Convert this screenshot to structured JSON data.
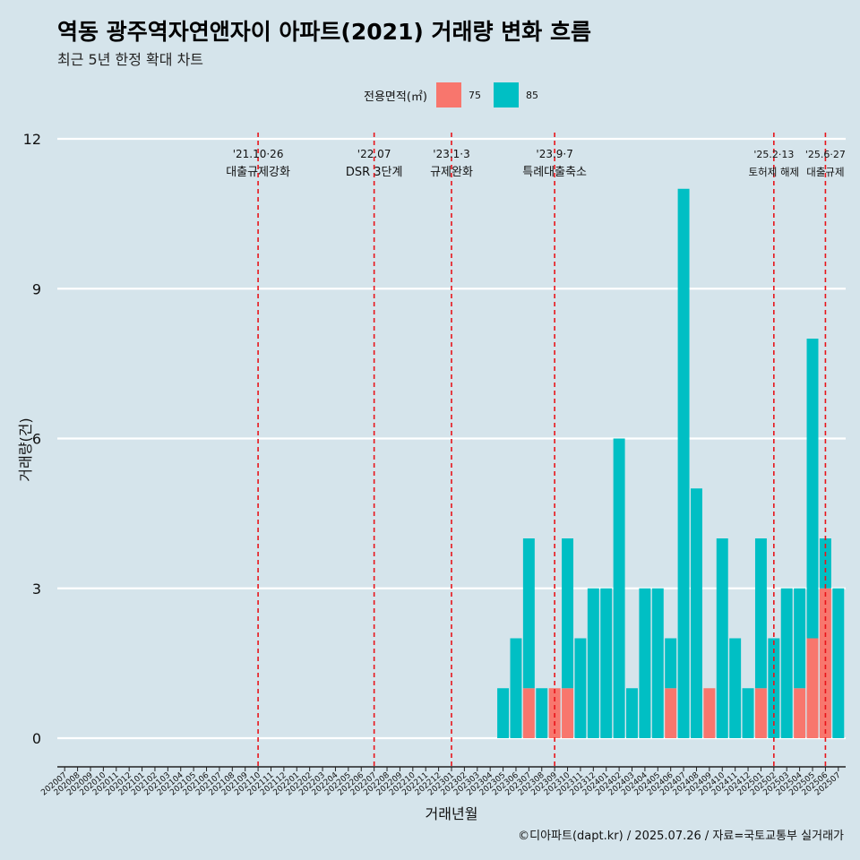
{
  "title": "역동 광주역자연앤자이 아파트(2021) 거래량 변화 흐름",
  "subtitle": "최근 5년 한정 확대 차트",
  "caption": "©디아파트(dapt.kr) / 2025.07.26 / 자료=국토교통부 실거래가",
  "colors": {
    "background": "#d5e4eb",
    "s75": "#f8766d",
    "s85": "#00bfc4",
    "event_line": "#e8141a",
    "grid": "#ffffff"
  },
  "chart_data": {
    "type": "bar",
    "stacked": true,
    "xlabel": "거래년월",
    "ylabel": "거래량(건)",
    "ylim": [
      0,
      12
    ],
    "yticks": [
      0,
      3,
      6,
      9,
      12
    ],
    "legend": {
      "title": "전용면적(㎡)",
      "position": "top"
    },
    "categories": [
      "202007",
      "202008",
      "202009",
      "202010",
      "202011",
      "202012",
      "202101",
      "202102",
      "202103",
      "202104",
      "202105",
      "202106",
      "202107",
      "202108",
      "202109",
      "202110",
      "202111",
      "202112",
      "202201",
      "202202",
      "202203",
      "202204",
      "202205",
      "202206",
      "202207",
      "202208",
      "202209",
      "202210",
      "202211",
      "202212",
      "202301",
      "202302",
      "202303",
      "202304",
      "202305",
      "202306",
      "202307",
      "202308",
      "202309",
      "202310",
      "202311",
      "202312",
      "202401",
      "202402",
      "202403",
      "202404",
      "202405",
      "202406",
      "202407",
      "202408",
      "202409",
      "202410",
      "202411",
      "202412",
      "202501",
      "202502",
      "202503",
      "202504",
      "202505",
      "202506",
      "202507"
    ],
    "series": [
      {
        "name": "75",
        "values": [
          0,
          0,
          0,
          0,
          0,
          0,
          0,
          0,
          0,
          0,
          0,
          0,
          0,
          0,
          0,
          0,
          0,
          0,
          0,
          0,
          0,
          0,
          0,
          0,
          0,
          0,
          0,
          0,
          0,
          0,
          0,
          0,
          0,
          0,
          0,
          0,
          1,
          0,
          1,
          1,
          0,
          0,
          0,
          0,
          0,
          0,
          0,
          1,
          0,
          0,
          1,
          0,
          0,
          0,
          1,
          0,
          0,
          1,
          2,
          3,
          0
        ]
      },
      {
        "name": "85",
        "values": [
          0,
          0,
          0,
          0,
          0,
          0,
          0,
          0,
          0,
          0,
          0,
          0,
          0,
          0,
          0,
          0,
          0,
          0,
          0,
          0,
          0,
          0,
          0,
          0,
          0,
          0,
          0,
          0,
          0,
          0,
          0,
          0,
          0,
          0,
          1,
          2,
          3,
          1,
          0,
          3,
          2,
          3,
          3,
          6,
          1,
          3,
          3,
          1,
          11,
          5,
          0,
          4,
          2,
          1,
          3,
          2,
          3,
          2,
          6,
          1,
          3
        ]
      }
    ],
    "events": [
      {
        "index": 15,
        "date": "'21.10·26",
        "label": "대출규제강화"
      },
      {
        "index": 24,
        "date": "'22.07",
        "label": "DSR 3단계"
      },
      {
        "index": 30,
        "date": "'23.1·3",
        "label": "규제완화"
      },
      {
        "index": 38,
        "date": "'23.9·7",
        "label": "특례대출축소"
      },
      {
        "index": 55,
        "date": "'25.2·13",
        "label": "토허제 해제"
      },
      {
        "index": 59,
        "date": "'25.6·27",
        "label": "대출규제"
      }
    ]
  }
}
